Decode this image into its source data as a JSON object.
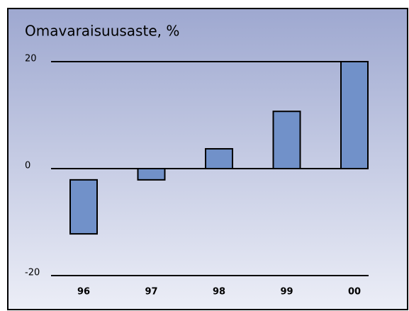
{
  "chart_data": {
    "type": "bar",
    "title": "Omavaraisuusaste, %",
    "categories": [
      "96",
      "97",
      "98",
      "99",
      "00"
    ],
    "bases": [
      -2.1,
      0,
      0,
      0,
      0
    ],
    "values": [
      -12.2,
      -2.1,
      3.7,
      10.7,
      20
    ],
    "color": "#7191c9",
    "ylim": [
      -20,
      20
    ],
    "yticks": [
      20,
      0,
      -20
    ],
    "grid": true
  }
}
